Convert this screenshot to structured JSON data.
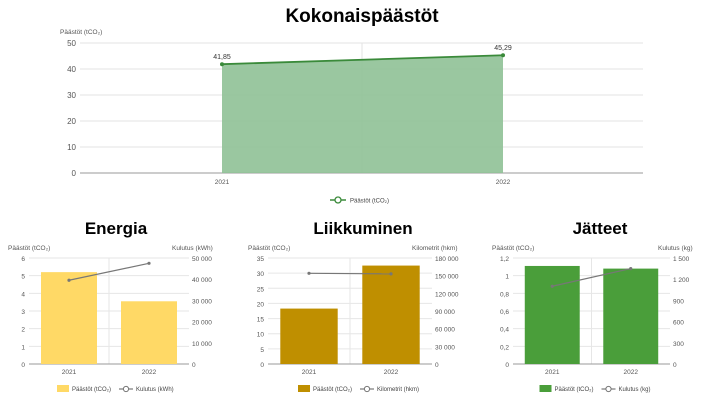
{
  "chart_data": [
    {
      "type": "area",
      "title": "Kokonaispäästöt",
      "ylabel": "Päästöt (tCO₂)",
      "categories": [
        "2021",
        "2022"
      ],
      "ylim": [
        0,
        50
      ],
      "yticks": [
        "0",
        "10",
        "20",
        "30",
        "40",
        "50"
      ],
      "series": [
        {
          "name": "Päästöt (tCO₂)",
          "values": [
            41.85,
            45.29
          ],
          "labels": [
            "41,85",
            "45,29"
          ],
          "color": "#3a8a3a",
          "fill": "#8fc196"
        }
      ],
      "legend": "bottom",
      "grid": true
    },
    {
      "type": "bar",
      "title": "Energia",
      "ylabel": "Päästöt (tCO₂)",
      "y2label": "Kulutus (kWh)",
      "categories": [
        "2021",
        "2022"
      ],
      "ylim": [
        0,
        6
      ],
      "y2lim": [
        0,
        50000
      ],
      "yticks": [
        "0",
        "1",
        "2",
        "3",
        "4",
        "5",
        "6"
      ],
      "y2ticks": [
        "0",
        "10 000",
        "20 000",
        "30 000",
        "40 000",
        "50 000"
      ],
      "series": [
        {
          "name": "Päästöt (tCO₂)",
          "kind": "bar",
          "axis": "left",
          "values": [
            5.2,
            3.55
          ],
          "color": "#ffd966"
        },
        {
          "name": "Kulutus (kWh)",
          "kind": "line",
          "axis": "right",
          "values": [
            39500,
            47500
          ],
          "color": "#777777"
        }
      ],
      "legend": "bottom",
      "grid": true
    },
    {
      "type": "bar",
      "title": "Liikkuminen",
      "ylabel": "Päästöt (tCO₂)",
      "y2label": "Kilometrit (hkm)",
      "categories": [
        "2021",
        "2022"
      ],
      "ylim": [
        0,
        35
      ],
      "y2lim": [
        0,
        180000
      ],
      "yticks": [
        "0",
        "5",
        "10",
        "15",
        "20",
        "25",
        "30",
        "35"
      ],
      "y2ticks": [
        "0",
        "30 000",
        "60 000",
        "90 000",
        "120 000",
        "150 000",
        "180 000"
      ],
      "series": [
        {
          "name": "Päästöt (tCO₂)",
          "kind": "bar",
          "axis": "left",
          "values": [
            18.3,
            32.5
          ],
          "color": "#bf8f00"
        },
        {
          "name": "Kilometrit (hkm)",
          "kind": "line",
          "axis": "right",
          "values": [
            154000,
            153000
          ],
          "color": "#777777"
        }
      ],
      "legend": "bottom",
      "grid": true
    },
    {
      "type": "bar",
      "title": "Jätteet",
      "ylabel": "Päästöt (tCO₂)",
      "y2label": "Kulutus (kg)",
      "categories": [
        "2021",
        "2022"
      ],
      "ylim": [
        0,
        1.2
      ],
      "y2lim": [
        0,
        1500
      ],
      "yticks": [
        "0",
        "0,2",
        "0,4",
        "0,6",
        "0,8",
        "1",
        "1,2"
      ],
      "y2ticks": [
        "0",
        "300",
        "600",
        "900",
        "1 200",
        "1 500"
      ],
      "series": [
        {
          "name": "Päästöt (tCO₂)",
          "kind": "bar",
          "axis": "left",
          "values": [
            1.11,
            1.08
          ],
          "color": "#4a9e3a"
        },
        {
          "name": "Kulutus (kg)",
          "kind": "line",
          "axis": "right",
          "values": [
            1100,
            1350
          ],
          "color": "#777777"
        }
      ],
      "legend": "bottom",
      "grid": true
    }
  ]
}
